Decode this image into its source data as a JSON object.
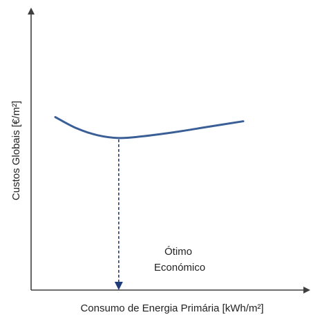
{
  "chart_data": {
    "type": "line",
    "title": "",
    "xlabel": "Consumo de Energia Primária [kWh/m²]",
    "ylabel": "Custos Globais [€/m²]",
    "series": [
      {
        "values": [
          {
            "x": 0.0,
            "y": 0.62
          },
          {
            "x": 0.09,
            "y": 0.58
          },
          {
            "x": 0.18,
            "y": 0.555
          },
          {
            "x": 0.27,
            "y": 0.545
          },
          {
            "x": 0.36,
            "y": 0.55
          },
          {
            "x": 0.5,
            "y": 0.565
          },
          {
            "x": 0.65,
            "y": 0.585
          },
          {
            "x": 0.8,
            "y": 0.605
          }
        ]
      }
    ],
    "annotations": [
      {
        "text": "Ótimo",
        "x": 0.27
      },
      {
        "text": "Económico",
        "x": 0.27
      }
    ],
    "optimum": {
      "x": 0.27,
      "y": 0.545
    },
    "colors": {
      "curve": "#3a5f96",
      "arrow": "#1f3d7a",
      "axis": "#3f3f3f",
      "text": "#222222"
    },
    "grid": false,
    "legend": "none"
  }
}
